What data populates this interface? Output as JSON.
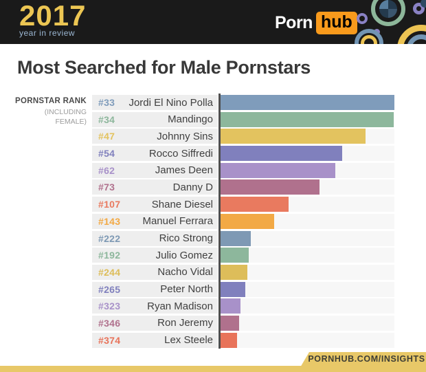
{
  "header": {
    "logo_year": "2017",
    "logo_tagline": "year in review",
    "brand_porn": "Porn",
    "brand_hub": "hub",
    "colors": {
      "background": "#1a1a1a",
      "year_gold": "#ecc653",
      "tagline_blue": "#9cb8d4",
      "hub_orange": "#f89a1c",
      "circle_green": "#8db79a",
      "circle_purple": "#8a82c4",
      "circle_gold": "#ecc353",
      "circle_blue": "#7295b4",
      "circle_navy": "#2e4a63"
    }
  },
  "title": "Most Searched for Male Pornstars",
  "side_label": {
    "line1": "PORNSTAR RANK",
    "line2": "(INCLUDING",
    "line3": "FEMALE)"
  },
  "footer": {
    "url": "PORNHUB.COM/INSIGHTS",
    "gold": "#e8c868"
  },
  "chart_data": {
    "type": "bar",
    "orientation": "horizontal",
    "title": "Most Searched for Male Pornstars",
    "value_note": "relative search volume, percent of longest bar (no numeric axis shown in image)",
    "legend_position": "none",
    "grid": false,
    "rows": [
      {
        "rank": "#33",
        "name": "Jordi El Nino Polla",
        "value": 100,
        "color": "#7f9cbb"
      },
      {
        "rank": "#34",
        "name": "Mandingo",
        "value": 99.5,
        "color": "#8db79c"
      },
      {
        "rank": "#47",
        "name": "Johnny Sins",
        "value": 83.5,
        "color": "#e3c35f"
      },
      {
        "rank": "#54",
        "name": "Rocco Siffredi",
        "value": 70,
        "color": "#8080bd"
      },
      {
        "rank": "#62",
        "name": "James Deen",
        "value": 66,
        "color": "#a891c9"
      },
      {
        "rank": "#73",
        "name": "Danny D",
        "value": 57,
        "color": "#b0718d"
      },
      {
        "rank": "#107",
        "name": "Shane Diesel",
        "value": 39,
        "color": "#e97a5f"
      },
      {
        "rank": "#143",
        "name": "Manuel Ferrara",
        "value": 31,
        "color": "#f2a945"
      },
      {
        "rank": "#222",
        "name": "Rico Strong",
        "value": 17.5,
        "color": "#7e99b4"
      },
      {
        "rank": "#192",
        "name": "Julio Gomez",
        "value": 16.3,
        "color": "#8db79c"
      },
      {
        "rank": "#244",
        "name": "Nacho Vidal",
        "value": 15.5,
        "color": "#ddbd5a"
      },
      {
        "rank": "#265",
        "name": "Peter North",
        "value": 14.3,
        "color": "#8080bd"
      },
      {
        "rank": "#323",
        "name": "Ryan Madison",
        "value": 11.5,
        "color": "#a891c9"
      },
      {
        "rank": "#346",
        "name": "Ron Jeremy",
        "value": 10.7,
        "color": "#b0718d"
      },
      {
        "rank": "#374",
        "name": "Lex Steele",
        "value": 9.5,
        "color": "#e8735a"
      }
    ]
  }
}
